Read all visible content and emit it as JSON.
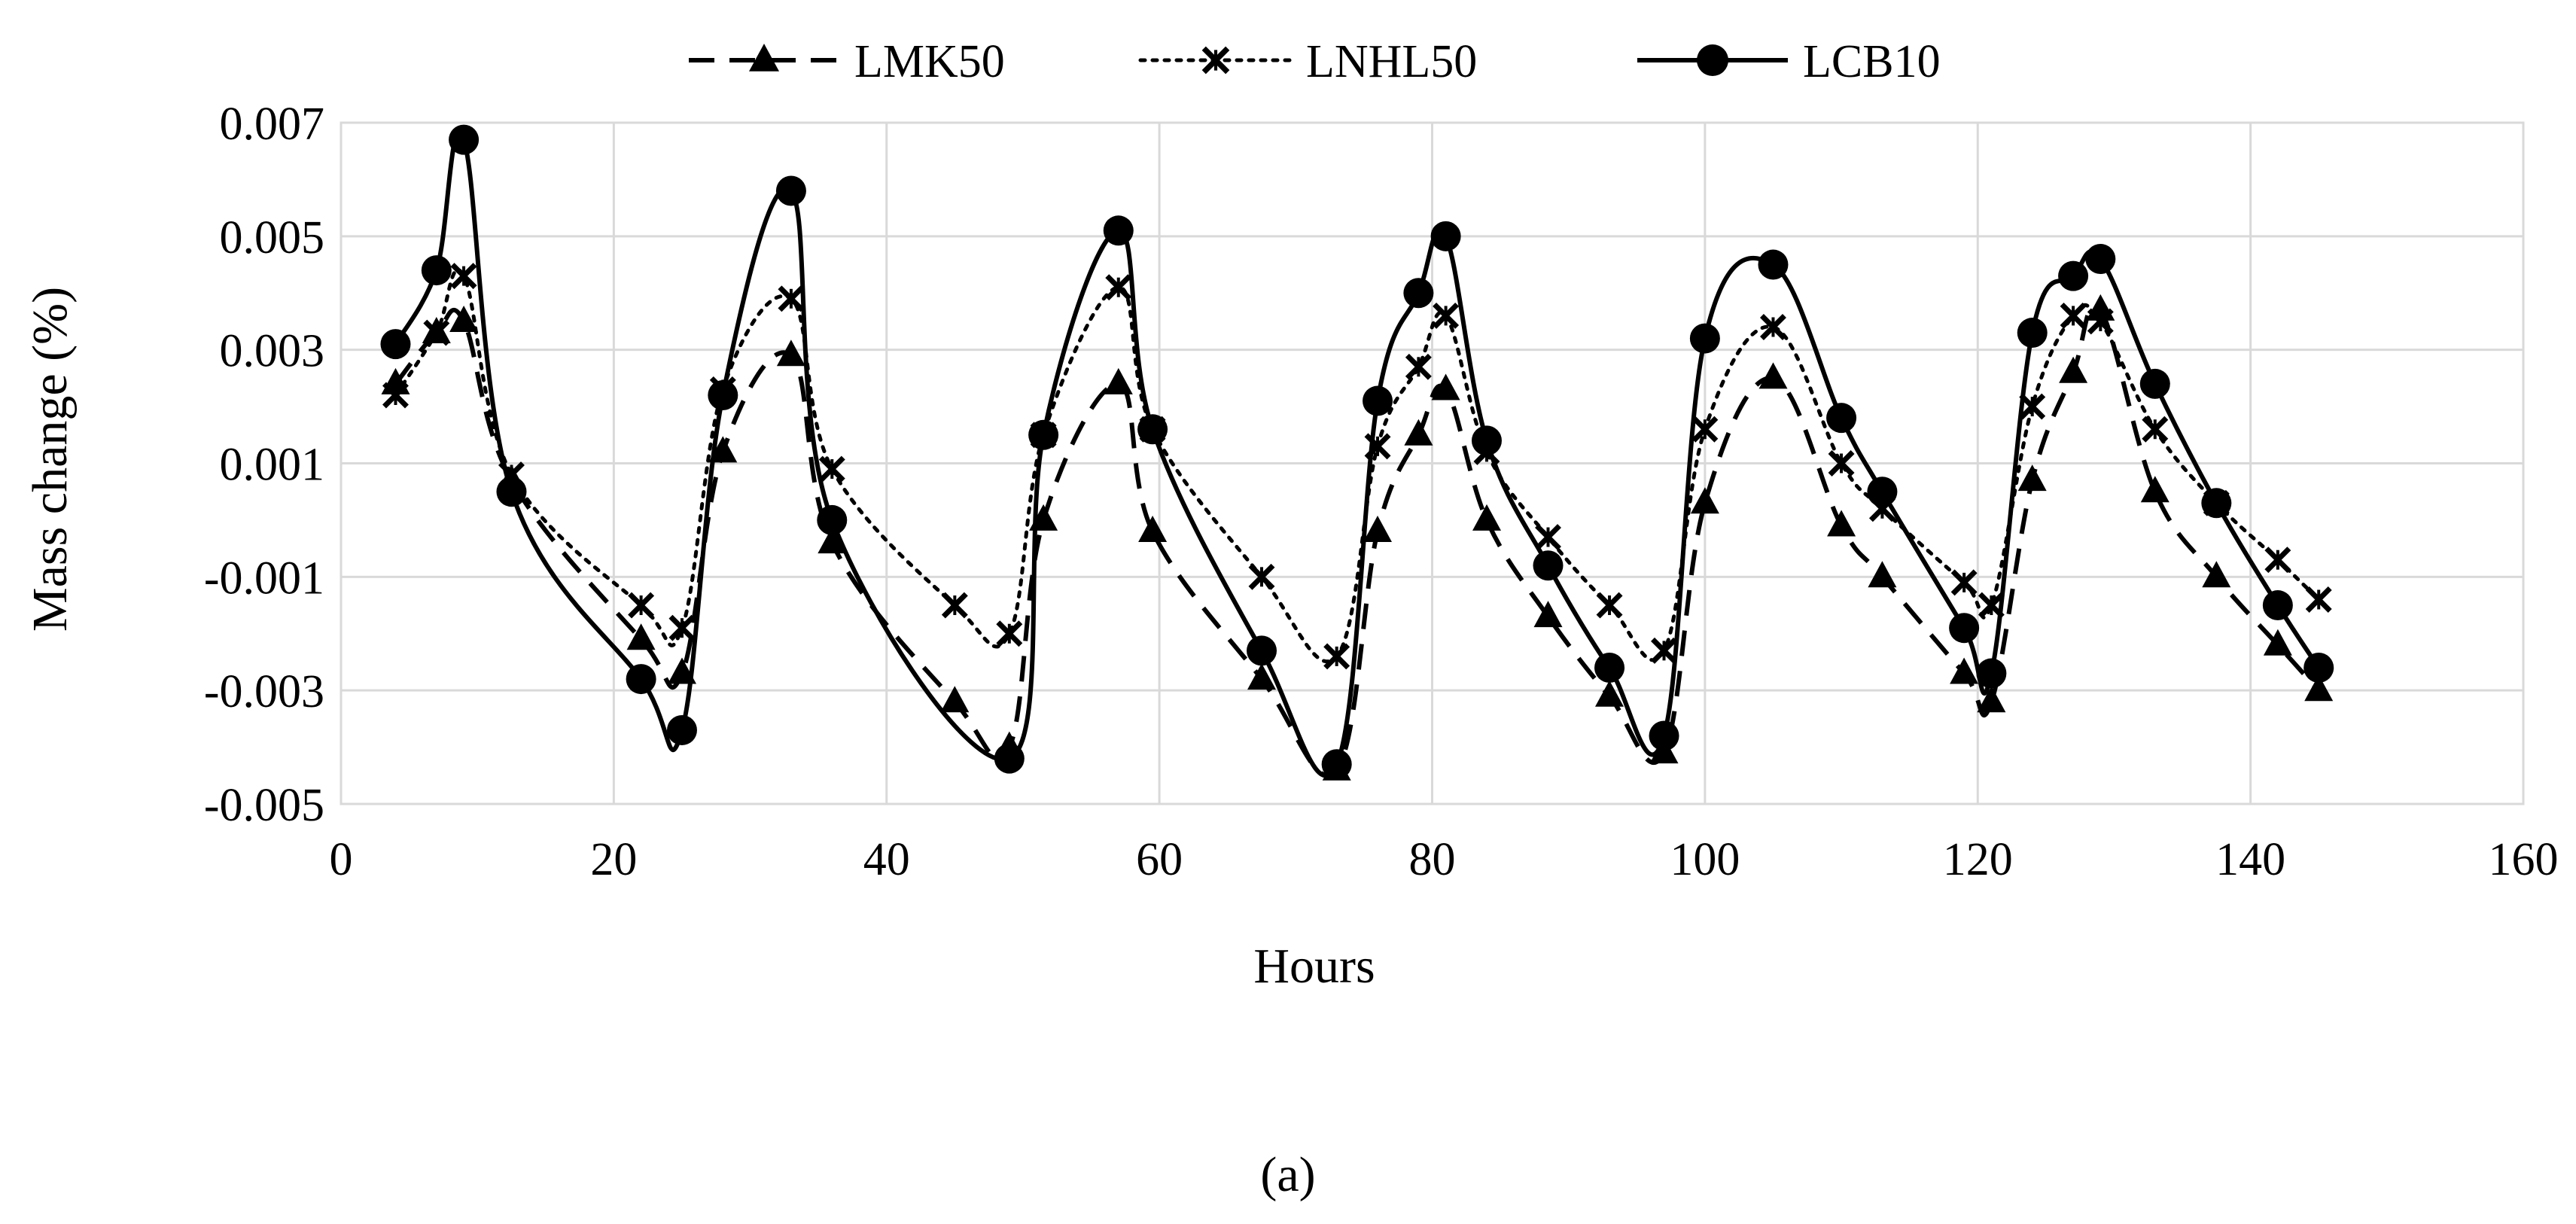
{
  "chart_data": {
    "type": "line",
    "title": "",
    "xlabel": "Hours",
    "ylabel": "Mass change (%)",
    "xlim": [
      0,
      160
    ],
    "ylim": [
      -0.005,
      0.007
    ],
    "x_ticks": [
      0,
      20,
      40,
      60,
      80,
      100,
      120,
      140,
      160
    ],
    "x_tick_labels": [
      "0",
      "20",
      "40",
      "60",
      "80",
      "100",
      "120",
      "140",
      "160"
    ],
    "y_ticks": [
      -0.005,
      -0.003,
      -0.001,
      0.001,
      0.003,
      0.005,
      0.007
    ],
    "y_tick_labels": [
      "-0.005",
      "-0.003",
      "-0.001",
      "0.001",
      "0.003",
      "0.005",
      "0.007"
    ],
    "grid": true,
    "legend_position": "top-center",
    "caption": "(a)",
    "series": [
      {
        "name": "LMK50",
        "line_style": "dashed",
        "marker": "triangle",
        "x": [
          4,
          7,
          9,
          12.5,
          22,
          25,
          28,
          33,
          36,
          45,
          49,
          51.5,
          57,
          59.5,
          67.5,
          73,
          76,
          79,
          81,
          84,
          88.5,
          93,
          97,
          100,
          105,
          110,
          113,
          119,
          121,
          124,
          127,
          129,
          133,
          137.5,
          142,
          145
        ],
        "y": [
          0.0024,
          0.0033,
          0.0035,
          0.0007,
          -0.0021,
          -0.0027,
          0.0012,
          0.0029,
          -0.0004,
          -0.0032,
          -0.004,
          0.0,
          0.0024,
          -0.0002,
          -0.0028,
          -0.0044,
          -0.0002,
          0.0015,
          0.0023,
          0.0,
          -0.0017,
          -0.0031,
          -0.0041,
          0.0003,
          0.0025,
          -0.0001,
          -0.001,
          -0.0027,
          -0.0032,
          0.0007,
          0.0026,
          0.0037,
          0.0005,
          -0.001,
          -0.0022,
          -0.003
        ]
      },
      {
        "name": "LNHL50",
        "line_style": "dotted",
        "marker": "star-x",
        "x": [
          4,
          7,
          9,
          12.5,
          22,
          25,
          28,
          33,
          36,
          45,
          49,
          51.5,
          57,
          59.5,
          67.5,
          73,
          76,
          79,
          81,
          84,
          88.5,
          93,
          97,
          100,
          105,
          110,
          113,
          119,
          121,
          124,
          127,
          129,
          133,
          137.5,
          142,
          145
        ],
        "y": [
          0.0022,
          0.0033,
          0.0043,
          0.0008,
          -0.0015,
          -0.0019,
          0.0023,
          0.0039,
          0.0009,
          -0.0015,
          -0.002,
          0.0015,
          0.0041,
          0.0016,
          -0.001,
          -0.0024,
          0.0013,
          0.0027,
          0.0036,
          0.0012,
          -0.0003,
          -0.0015,
          -0.0023,
          0.0016,
          0.0034,
          0.001,
          0.0002,
          -0.0011,
          -0.0015,
          0.002,
          0.0036,
          0.0035,
          0.0016,
          0.0003,
          -0.0007,
          -0.0014
        ]
      },
      {
        "name": "LCB10",
        "line_style": "solid",
        "marker": "circle",
        "x": [
          4,
          7,
          9,
          12.5,
          22,
          25,
          28,
          33,
          36,
          49,
          51.5,
          57,
          59.5,
          67.5,
          73,
          76,
          79,
          81,
          84,
          88.5,
          93,
          97,
          100,
          105,
          110,
          113,
          119,
          121,
          124,
          127,
          129,
          133,
          137.5,
          142,
          145
        ],
        "y": [
          0.0031,
          0.0044,
          0.0067,
          0.0005,
          -0.0028,
          -0.0037,
          0.0022,
          0.0058,
          0.0,
          -0.0042,
          0.0015,
          0.0051,
          0.0016,
          -0.0023,
          -0.0043,
          0.0021,
          0.004,
          0.005,
          0.0014,
          -0.0008,
          -0.0026,
          -0.0038,
          0.0032,
          0.0045,
          0.0018,
          0.0005,
          -0.0019,
          -0.0027,
          0.0033,
          0.0043,
          0.0046,
          0.0024,
          0.0003,
          -0.0015,
          -0.0026
        ]
      }
    ]
  }
}
